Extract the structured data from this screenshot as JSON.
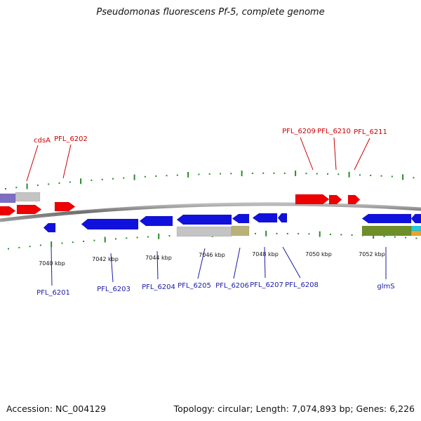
{
  "title": "Pseudomonas fluorescens Pf-5, complete genome",
  "footer": {
    "accession": "Accession: NC_004129",
    "topology": "Topology: circular; Length: 7,074,893 bp; Genes: 6,226"
  },
  "colors": {
    "forward_gene": "#ee0000",
    "reverse_gene": "#1111dd",
    "backbone": "#888888",
    "tick": "#2a8a2a",
    "forward_label": "#cc0000",
    "reverse_label": "#1a1aa8",
    "gray_feature": "#c4c4c4",
    "olive_feature": "#6e8e2a",
    "khaki_feature": "#b8b27a",
    "purple_feature": "#7d6fc4",
    "cyan_feature": "#22ccdd",
    "orange_feature": "#f0a030"
  },
  "scale": {
    "ticks": [
      {
        "label": "7040 kbp"
      },
      {
        "label": "7042 kbp"
      },
      {
        "label": "7044 kbp"
      },
      {
        "label": "7046 kbp"
      },
      {
        "label": "7048 kbp"
      },
      {
        "label": "7050 kbp"
      },
      {
        "label": "7052 kbp"
      }
    ]
  },
  "genes_top": [
    {
      "name": "cdsA"
    },
    {
      "name": "PFL_6202"
    },
    {
      "name": "PFL_6209"
    },
    {
      "name": "PFL_6210"
    },
    {
      "name": "PFL_6211"
    }
  ],
  "genes_bottom": [
    {
      "name": "PFL_6201"
    },
    {
      "name": "PFL_6203"
    },
    {
      "name": "PFL_6204"
    },
    {
      "name": "PFL_6205"
    },
    {
      "name": "PFL_6206"
    },
    {
      "name": "PFL_6207"
    },
    {
      "name": "PFL_6208"
    },
    {
      "name": "glmS"
    }
  ]
}
